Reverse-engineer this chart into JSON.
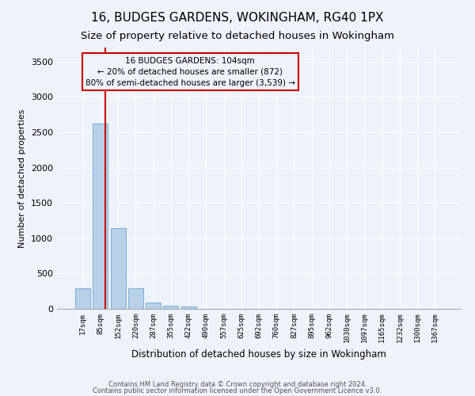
{
  "title": "16, BUDGES GARDENS, WOKINGHAM, RG40 1PX",
  "subtitle": "Size of property relative to detached houses in Wokingham",
  "xlabel": "Distribution of detached houses by size in Wokingham",
  "ylabel": "Number of detached properties",
  "bar_labels": [
    "17sqm",
    "85sqm",
    "152sqm",
    "220sqm",
    "287sqm",
    "355sqm",
    "422sqm",
    "490sqm",
    "557sqm",
    "625sqm",
    "692sqm",
    "760sqm",
    "827sqm",
    "895sqm",
    "962sqm",
    "1030sqm",
    "1097sqm",
    "1165sqm",
    "1232sqm",
    "1300sqm",
    "1367sqm"
  ],
  "bar_values": [
    290,
    2620,
    1140,
    295,
    85,
    40,
    30,
    0,
    0,
    0,
    0,
    0,
    0,
    0,
    0,
    0,
    0,
    0,
    0,
    0,
    0
  ],
  "bar_color": "#b8d0e8",
  "bar_edge_color": "#6aaad4",
  "ylim": [
    0,
    3700
  ],
  "yticks": [
    0,
    500,
    1000,
    1500,
    2000,
    2500,
    3000,
    3500
  ],
  "vline_x": 1.28,
  "vline_color": "#cc0000",
  "annotation_text": "16 BUDGES GARDENS: 104sqm\n← 20% of detached houses are smaller (872)\n80% of semi-detached houses are larger (3,539) →",
  "annotation_box_color": "#cc0000",
  "background_color": "#eef2fa",
  "grid_color": "#ffffff",
  "footer_line1": "Contains HM Land Registry data © Crown copyright and database right 2024.",
  "footer_line2": "Contains public sector information licensed under the Open Government Licence v3.0.",
  "title_fontsize": 11,
  "subtitle_fontsize": 9.5,
  "xlabel_fontsize": 8.5,
  "ylabel_fontsize": 8,
  "annotation_fontsize": 7.5,
  "bar_width": 0.85
}
